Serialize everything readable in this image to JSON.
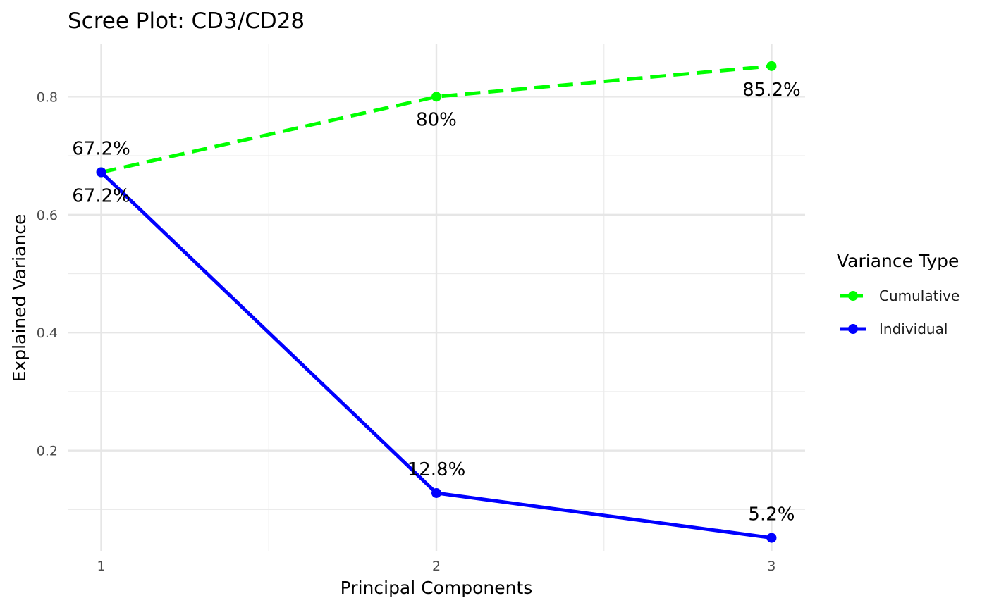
{
  "chart_data": {
    "type": "line",
    "title": "Scree Plot: CD3/CD28",
    "xlabel": "Principal Components",
    "ylabel": "Explained Variance",
    "x": [
      1,
      2,
      3
    ],
    "x_tick_labels": [
      "1",
      "2",
      "3"
    ],
    "y_ticks": [
      0.2,
      0.4,
      0.6,
      0.8
    ],
    "y_tick_labels": [
      "0.2",
      "0.4",
      "0.6",
      "0.8"
    ],
    "xlim": [
      0.9,
      3.1
    ],
    "ylim": [
      0.03,
      0.89
    ],
    "grid": true,
    "legend": {
      "title": "Variance Type",
      "position": "right"
    },
    "series": [
      {
        "name": "Cumulative",
        "values": [
          0.672,
          0.8,
          0.852
        ],
        "labels": [
          "67.2%",
          "80%",
          "85.2%"
        ],
        "color": "#00FF00",
        "dashed": true
      },
      {
        "name": "Individual",
        "values": [
          0.672,
          0.128,
          0.052
        ],
        "labels": [
          "67.2%",
          "12.8%",
          "5.2%"
        ],
        "color": "#0000FF",
        "dashed": false
      }
    ]
  }
}
